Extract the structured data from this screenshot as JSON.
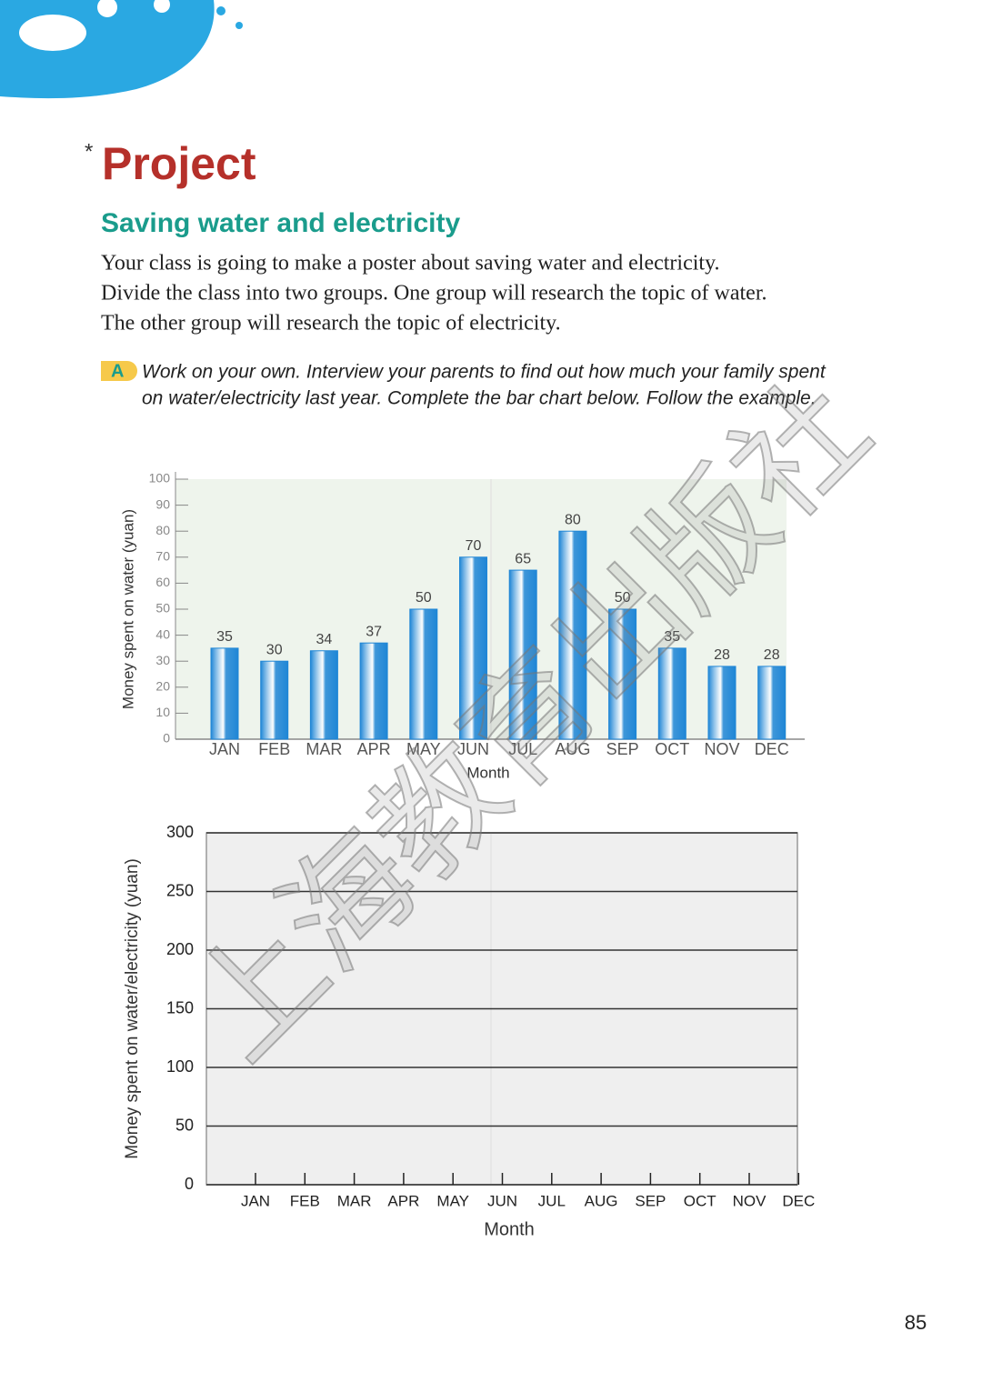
{
  "page": {
    "asterisk": "*",
    "title": "Project",
    "subtitle": "Saving water and electricity",
    "paragraph": [
      "Your class is going to make a poster about saving water and electricity.",
      "Divide the class into two groups. One group will research the topic of water.",
      "The other group will research the topic of electricity."
    ],
    "task_letter": "A",
    "task_text": [
      "Work on your own. Interview your parents to find out how much your family spent",
      "on water/electricity last year. Complete the bar chart below. Follow the example."
    ],
    "watermark": "上海教育出版社",
    "page_number": "85"
  },
  "chart_data": [
    {
      "type": "bar",
      "categories": [
        "JAN",
        "FEB",
        "MAR",
        "APR",
        "MAY",
        "JUN",
        "JUL",
        "AUG",
        "SEP",
        "OCT",
        "NOV",
        "DEC"
      ],
      "values": [
        35,
        30,
        34,
        37,
        50,
        70,
        65,
        80,
        50,
        35,
        28,
        28
      ],
      "color": "#1f86d6",
      "xlabel": "Month",
      "ylabel": "Money spent on water (yuan)",
      "ylim": [
        0,
        100
      ],
      "yticks": [
        0,
        10,
        20,
        30,
        40,
        50,
        60,
        70,
        80,
        90,
        100
      ],
      "grid": false
    },
    {
      "type": "bar",
      "categories": [
        "JAN",
        "FEB",
        "MAR",
        "APR",
        "MAY",
        "JUN",
        "JUL",
        "AUG",
        "SEP",
        "OCT",
        "NOV",
        "DEC"
      ],
      "xlabel": "Month",
      "ylabel": "Money spent on water/electricity (yuan)",
      "ylim": [
        0,
        300
      ],
      "yticks": [
        0,
        50,
        100,
        150,
        200,
        250,
        300
      ],
      "grid": true
    }
  ]
}
